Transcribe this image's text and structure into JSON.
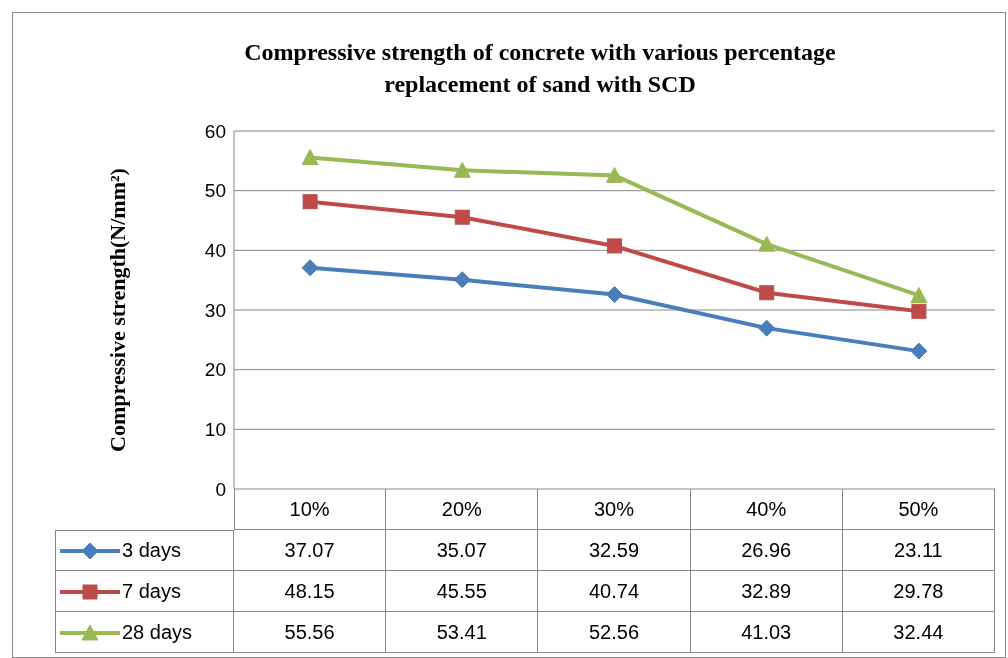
{
  "chart_data": {
    "type": "line",
    "title": "Compressive strength of concrete with various percentage replacement of sand with SCD",
    "ylabel": "Compressive strength(N/mm²)",
    "categories": [
      "10%",
      "20%",
      "30%",
      "40%",
      "50%"
    ],
    "series": [
      {
        "name": "3 days",
        "color": "#4a7ebb",
        "marker": "diamond",
        "values": [
          37.07,
          35.07,
          32.59,
          26.96,
          23.11
        ]
      },
      {
        "name": "7 days",
        "color": "#be4b48",
        "marker": "square",
        "values": [
          48.15,
          45.55,
          40.74,
          32.89,
          29.78
        ]
      },
      {
        "name": "28 days",
        "color": "#98b954",
        "marker": "triangle",
        "values": [
          55.56,
          53.41,
          52.56,
          41.03,
          32.44
        ]
      }
    ],
    "ylim": [
      0,
      60
    ],
    "yticks": [
      0,
      10,
      20,
      30,
      40,
      50,
      60
    ],
    "grid": "y",
    "legend": "bottom",
    "data_labels": true,
    "line_style": "solid"
  }
}
